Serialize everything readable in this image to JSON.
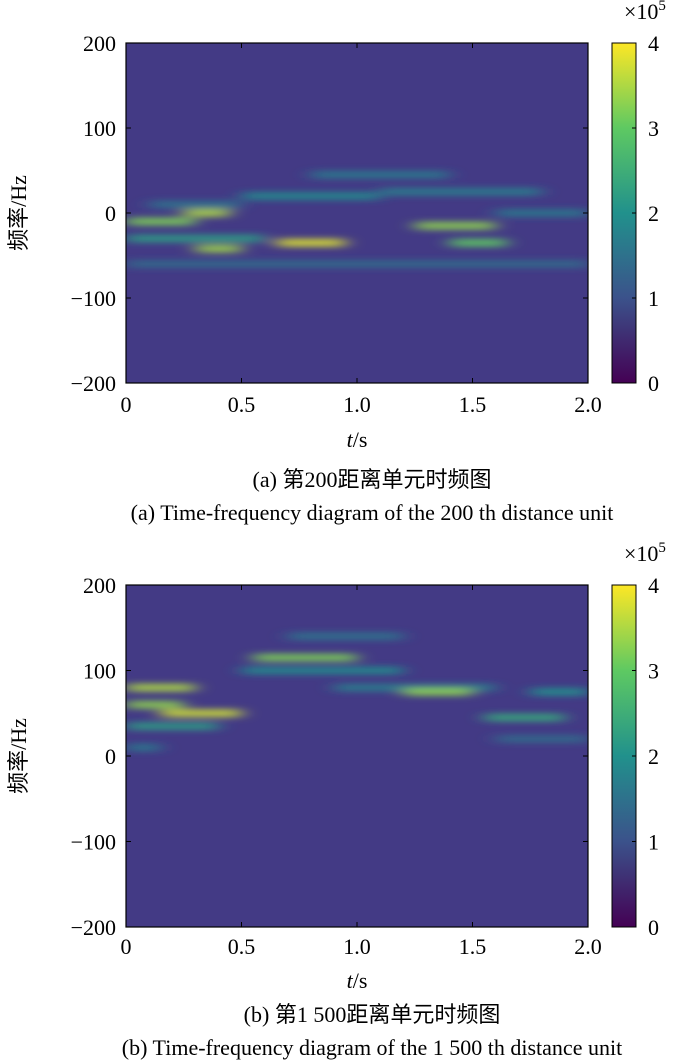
{
  "chart_data": [
    {
      "type": "heatmap",
      "title": "",
      "xlabel_var": "t",
      "xlabel_unit": "/s",
      "ylabel": "频率/Hz",
      "xlim": [
        0,
        2.0
      ],
      "ylim": [
        -200,
        200
      ],
      "xticks": [
        "0",
        "0.5",
        "1.0",
        "1.5",
        "2.0"
      ],
      "xtick_values": [
        0,
        0.5,
        1.0,
        1.5,
        2.0
      ],
      "yticks": [
        "200",
        "100",
        "0",
        "−100",
        "−200"
      ],
      "ytick_values": [
        200,
        100,
        0,
        -100,
        -200
      ],
      "colorbar": {
        "min": 0,
        "max": 4,
        "ticks": [
          "4",
          "3",
          "2",
          "1",
          "0"
        ],
        "tick_values": [
          4,
          3,
          2,
          1,
          0
        ],
        "multiplier": "×10",
        "multiplier_exp": "5"
      },
      "colormap": [
        "#440154",
        "#3b528b",
        "#21918c",
        "#5ec962",
        "#fde725"
      ],
      "background_color": "#433a85",
      "features": [
        {
          "t0": 0.0,
          "t1": 0.3,
          "f": -10,
          "v": 3.2
        },
        {
          "t0": 0.25,
          "t1": 0.45,
          "f": 0,
          "v": 3.5
        },
        {
          "t0": 0.0,
          "t1": 0.6,
          "f": -30,
          "v": 2.2
        },
        {
          "t0": 0.3,
          "t1": 0.5,
          "f": -42,
          "v": 3.4
        },
        {
          "t0": 0.65,
          "t1": 0.95,
          "f": -35,
          "v": 3.8
        },
        {
          "t0": 0.5,
          "t1": 1.1,
          "f": 20,
          "v": 1.9
        },
        {
          "t0": 0.8,
          "t1": 1.4,
          "f": 45,
          "v": 1.6
        },
        {
          "t0": 1.1,
          "t1": 1.8,
          "f": 25,
          "v": 1.7
        },
        {
          "t0": 1.25,
          "t1": 1.6,
          "f": -15,
          "v": 3.3
        },
        {
          "t0": 1.4,
          "t1": 1.65,
          "f": -35,
          "v": 3.0
        },
        {
          "t0": 0.0,
          "t1": 2.0,
          "f": -60,
          "v": 1.4
        },
        {
          "t0": 1.6,
          "t1": 2.0,
          "f": 0,
          "v": 1.6
        },
        {
          "t0": 0.1,
          "t1": 0.5,
          "f": 10,
          "v": 1.5
        }
      ],
      "caption_cn": "(a) 第200距离单元时频图",
      "caption_en": "(a) Time-frequency diagram of the 200 th distance unit"
    },
    {
      "type": "heatmap",
      "title": "",
      "xlabel_var": "t",
      "xlabel_unit": "/s",
      "ylabel": "频率/Hz",
      "xlim": [
        0,
        2.0
      ],
      "ylim": [
        -200,
        200
      ],
      "xticks": [
        "0",
        "0.5",
        "1.0",
        "1.5",
        "2.0"
      ],
      "xtick_values": [
        0,
        0.5,
        1.0,
        1.5,
        2.0
      ],
      "yticks": [
        "200",
        "100",
        "0",
        "−100",
        "−200"
      ],
      "ytick_values": [
        200,
        100,
        0,
        -100,
        -200
      ],
      "colorbar": {
        "min": 0,
        "max": 4,
        "ticks": [
          "4",
          "3",
          "2",
          "1",
          "0"
        ],
        "tick_values": [
          4,
          3,
          2,
          1,
          0
        ],
        "multiplier": "×10",
        "multiplier_exp": "5"
      },
      "colormap": [
        "#440154",
        "#3b528b",
        "#21918c",
        "#5ec962",
        "#fde725"
      ],
      "background_color": "#433a85",
      "features": [
        {
          "t0": 0.0,
          "t1": 0.3,
          "f": 80,
          "v": 3.5
        },
        {
          "t0": 0.0,
          "t1": 0.25,
          "f": 60,
          "v": 3.3
        },
        {
          "t0": 0.15,
          "t1": 0.5,
          "f": 50,
          "v": 3.7
        },
        {
          "t0": 0.0,
          "t1": 0.4,
          "f": 35,
          "v": 2.2
        },
        {
          "t0": 0.0,
          "t1": 0.15,
          "f": 10,
          "v": 1.6
        },
        {
          "t0": 0.55,
          "t1": 1.0,
          "f": 115,
          "v": 3.2
        },
        {
          "t0": 0.5,
          "t1": 1.2,
          "f": 100,
          "v": 1.9
        },
        {
          "t0": 0.9,
          "t1": 1.6,
          "f": 80,
          "v": 1.7
        },
        {
          "t0": 1.2,
          "t1": 1.5,
          "f": 75,
          "v": 3.3
        },
        {
          "t0": 1.55,
          "t1": 1.9,
          "f": 45,
          "v": 2.4
        },
        {
          "t0": 1.75,
          "t1": 2.0,
          "f": 75,
          "v": 2.0
        },
        {
          "t0": 1.6,
          "t1": 2.0,
          "f": 20,
          "v": 1.4
        },
        {
          "t0": 0.7,
          "t1": 1.2,
          "f": 140,
          "v": 1.5
        }
      ],
      "caption_cn": "(b) 第1 500距离单元时频图",
      "caption_en": "(b) Time-frequency diagram of the 1 500 th distance unit"
    }
  ]
}
